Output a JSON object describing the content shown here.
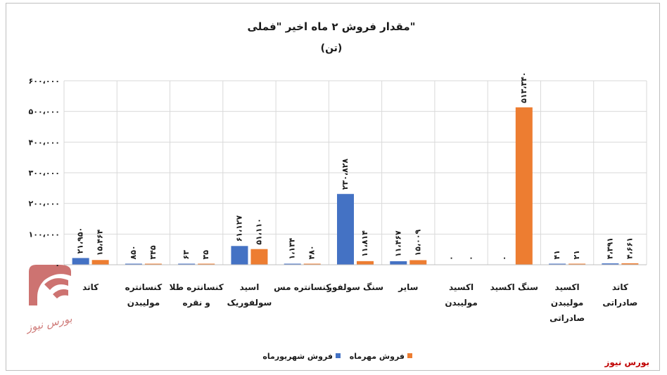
{
  "source_label": "بورس نیوز",
  "logo_text": "بورس نیوز",
  "chart_data": {
    "type": "bar",
    "title": "مقدار فروش ۲ ماه اخیر \"فملی\"",
    "subtitle": "(تن)",
    "categories": [
      [
        "کاتد"
      ],
      [
        "کنسانتره",
        "مولیبدن"
      ],
      [
        "کنسانتره طلا",
        "و نقره"
      ],
      [
        "اسید",
        "سولفوریک"
      ],
      [
        "کنسانتره مس"
      ],
      [
        "سنگ سولفور"
      ],
      [
        "سایر"
      ],
      [
        "اکسید",
        "مولیبدن"
      ],
      [
        "سنگ اکسید"
      ],
      [
        "اکسید",
        "مولیبدن",
        "صادراتی"
      ],
      [
        "کاتد",
        "صادراتی"
      ]
    ],
    "series": [
      {
        "name": "فروش شهریورماه",
        "color": "#4472c4",
        "values": [
          21950,
          850,
          63,
          61127,
          1134,
          230828,
          11467,
          0,
          0,
          41,
          4391
        ],
        "labels": [
          "۲۱،۹۵۰",
          "۸۵۰",
          "۶۳",
          "۶۱،۱۲۷",
          "۱،۱۳۴",
          "۲۳۰،۸۲۸",
          "۱۱،۴۶۷",
          "۰",
          "۰",
          "۴۱",
          "۴،۳۹۱"
        ]
      },
      {
        "name": "فروش مهرماه",
        "color": "#ed7d31",
        "values": [
          15464,
          345,
          35,
          51110,
          480,
          11814,
          15009,
          0,
          513340,
          21,
          4661
        ],
        "labels": [
          "۱۵،۴۶۴",
          "۳۴۵",
          "۳۵",
          "۵۱،۱۱۰",
          "۴۸۰",
          "۱۱،۸۱۴",
          "۱۵،۰۰۹",
          "۰",
          "۵۱۳،۳۴۰",
          "۲۱",
          "۴،۶۶۱"
        ]
      }
    ],
    "ylim": [
      0,
      600000
    ],
    "yticks": [
      0,
      100000,
      200000,
      300000,
      400000,
      500000,
      600000
    ],
    "ytick_labels": [
      "۰",
      "۱۰۰،۰۰۰",
      "۲۰۰،۰۰۰",
      "۳۰۰،۰۰۰",
      "۴۰۰،۰۰۰",
      "۵۰۰،۰۰۰",
      "۶۰۰،۰۰۰"
    ],
    "grid": true,
    "legend_position": "bottom"
  }
}
